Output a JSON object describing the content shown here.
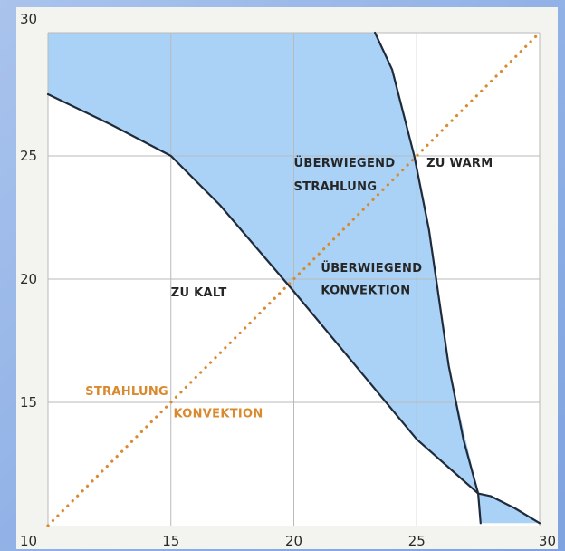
{
  "colors": {
    "comfort_fill": "#a9d2f6",
    "boundary": "#1f2a3a",
    "diagonal": "#d98a2e",
    "grid": "#b9b9b9",
    "plot_bg": "#ffffff"
  },
  "chart_data": {
    "type": "area",
    "title": "",
    "xlabel": "",
    "ylabel": "",
    "xlim": [
      10,
      30
    ],
    "ylim": [
      10,
      30
    ],
    "grid": true,
    "x_ticks": [
      10,
      15,
      20,
      25,
      30
    ],
    "y_ticks": [
      15,
      20,
      25,
      30
    ],
    "regions": [
      {
        "name": "comfort_zone",
        "fill_polygon": [
          [
            10,
            27.5
          ],
          [
            12.5,
            26.3
          ],
          [
            15,
            25.0
          ],
          [
            17,
            23.0
          ],
          [
            20,
            19.5
          ],
          [
            22.5,
            16.5
          ],
          [
            25,
            13.5
          ],
          [
            27.5,
            11.3
          ],
          [
            28,
            11.2
          ],
          [
            29,
            10.7
          ],
          [
            30,
            10.1
          ],
          [
            27.6,
            10.1
          ],
          [
            27.5,
            11.3
          ],
          [
            26.3,
            16.5
          ],
          [
            25.5,
            22.0
          ],
          [
            24.9,
            25.0
          ],
          [
            24,
            28.5
          ],
          [
            23.3,
            30
          ],
          [
            10,
            30
          ]
        ]
      }
    ],
    "boundaries": [
      {
        "name": "lower_boundary",
        "points": [
          [
            10,
            27.5
          ],
          [
            12.5,
            26.3
          ],
          [
            15,
            25.0
          ],
          [
            17,
            23.0
          ],
          [
            20,
            19.5
          ],
          [
            22.5,
            16.5
          ],
          [
            25,
            13.5
          ],
          [
            27.5,
            11.3
          ],
          [
            28,
            11.2
          ],
          [
            29,
            10.7
          ],
          [
            30,
            10.1
          ]
        ]
      },
      {
        "name": "warm_boundary",
        "points": [
          [
            23.3,
            30
          ],
          [
            24,
            28.5
          ],
          [
            24.9,
            25.0
          ],
          [
            25.5,
            22.0
          ],
          [
            26.3,
            16.5
          ],
          [
            26.9,
            13.5
          ],
          [
            27.5,
            11.3
          ],
          [
            27.6,
            10.1
          ]
        ]
      }
    ],
    "reference_line": {
      "x": [
        10,
        30
      ],
      "y": [
        10,
        30
      ],
      "style": "dotted"
    },
    "annotations": [
      {
        "text": "ÜBERWIEGEND",
        "x": 20,
        "y": 24.55,
        "anchor": "start",
        "kind": "region"
      },
      {
        "text": "STRAHLUNG",
        "x": 20,
        "y": 23.6,
        "anchor": "start",
        "kind": "region"
      },
      {
        "text": "ZU WARM",
        "x": 25.4,
        "y": 24.55,
        "anchor": "start",
        "kind": "region"
      },
      {
        "text": "ÜBERWIEGEND",
        "x": 21.1,
        "y": 20.3,
        "anchor": "start",
        "kind": "region"
      },
      {
        "text": "KONVEKTION",
        "x": 21.1,
        "y": 19.4,
        "anchor": "start",
        "kind": "region"
      },
      {
        "text": "ZU KALT",
        "x": 15.0,
        "y": 19.3,
        "anchor": "start",
        "kind": "region"
      },
      {
        "text": "STRAHLUNG",
        "x": 14.9,
        "y": 15.3,
        "anchor": "end",
        "kind": "diagonal"
      },
      {
        "text": "KONVEKTION",
        "x": 15.1,
        "y": 14.4,
        "anchor": "start",
        "kind": "diagonal"
      }
    ]
  }
}
